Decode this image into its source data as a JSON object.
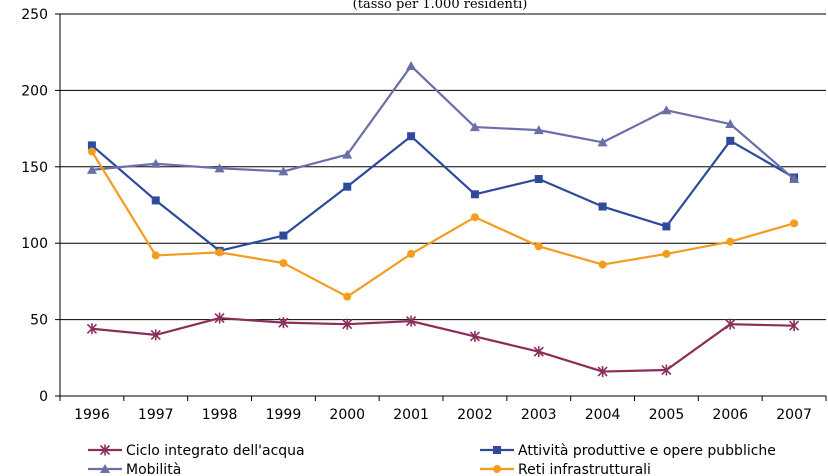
{
  "chart_data": {
    "type": "line",
    "title": "(tasso per 1.000 residenti)",
    "categories": [
      "1996",
      "1997",
      "1998",
      "1999",
      "2000",
      "2001",
      "2002",
      "2003",
      "2004",
      "2005",
      "2006",
      "2007"
    ],
    "ylim": [
      0,
      250
    ],
    "yticks": [
      0,
      50,
      100,
      150,
      200,
      250
    ],
    "grid": true,
    "legend_position": "bottom",
    "series": [
      {
        "name": "Ciclo integrato dell'acqua",
        "color": "#8B2E5A",
        "marker": "star",
        "values": [
          44,
          40,
          51,
          48,
          47,
          49,
          39,
          29,
          16,
          17,
          47,
          46
        ]
      },
      {
        "name": "Attività produttive e opere pubbliche",
        "color": "#2E4A9A",
        "marker": "square",
        "values": [
          164,
          128,
          95,
          105,
          137,
          170,
          132,
          142,
          124,
          111,
          167,
          143
        ]
      },
      {
        "name": "Mobilità",
        "color": "#6B6FA8",
        "marker": "triangle",
        "values": [
          148,
          152,
          149,
          147,
          158,
          216,
          176,
          174,
          166,
          187,
          178,
          142
        ]
      },
      {
        "name": "Reti infrastrutturali",
        "color": "#F39C1E",
        "marker": "circle",
        "values": [
          160,
          92,
          94,
          87,
          65,
          93,
          117,
          98,
          86,
          93,
          101,
          113
        ]
      }
    ]
  }
}
